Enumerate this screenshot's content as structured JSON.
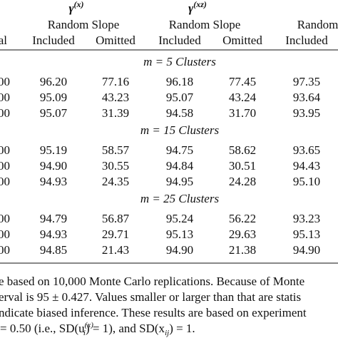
{
  "table": {
    "groups": [
      {
        "symbol": "γ",
        "superscript": "(x)",
        "subheader": "Random Slope"
      },
      {
        "symbol": "γ",
        "superscript": "(xz)",
        "subheader": "Random Slope"
      },
      {
        "subheader": "Random Slope"
      }
    ],
    "columns": [
      "tal",
      "Included",
      "Omitted",
      "Included",
      "Omitted",
      "Included"
    ],
    "sections": [
      {
        "heading": "m = 5 Clusters",
        "rows": [
          [
            "00",
            "96.20",
            "77.16",
            "96.18",
            "77.45",
            "97.35"
          ],
          [
            "00",
            "95.09",
            "43.23",
            "95.07",
            "43.24",
            "93.64"
          ],
          [
            "00",
            "95.07",
            "31.39",
            "94.58",
            "31.70",
            "93.95"
          ]
        ]
      },
      {
        "heading": "m = 15 Clusters",
        "rows": [
          [
            "00",
            "95.19",
            "58.57",
            "94.75",
            "58.62",
            "93.65"
          ],
          [
            "00",
            "94.90",
            "30.55",
            "94.84",
            "30.51",
            "94.43"
          ],
          [
            "00",
            "94.93",
            "24.35",
            "94.95",
            "24.28",
            "95.10"
          ]
        ]
      },
      {
        "heading": "m = 25 Clusters",
        "rows": [
          [
            "00",
            "94.79",
            "56.87",
            "95.24",
            "56.22",
            "93.23"
          ],
          [
            "00",
            "94.93",
            "29.71",
            "95.13",
            "29.63",
            "95.13"
          ],
          [
            "00",
            "94.85",
            "21.43",
            "94.90",
            "21.38",
            "94.90"
          ]
        ]
      }
    ]
  },
  "footnote": {
    "lines": [
      "e based on 10,000 Monte Carlo replications. Because of Monte",
      "erval is 95 ± 0.427. Values smaller or larger than that are statis",
      "ndicate biased inference. These results are based on experiment"
    ],
    "last_line": [
      {
        "text": "= 0.50 (i.e., SD(u"
      },
      {
        "text": "(x)",
        "pos": "sup"
      },
      {
        "text": "i",
        "pos": "sub"
      },
      {
        "text": ") = 1), and SD(x"
      },
      {
        "text": "ij",
        "pos": "sub"
      },
      {
        "text": ") = 1."
      }
    ]
  }
}
